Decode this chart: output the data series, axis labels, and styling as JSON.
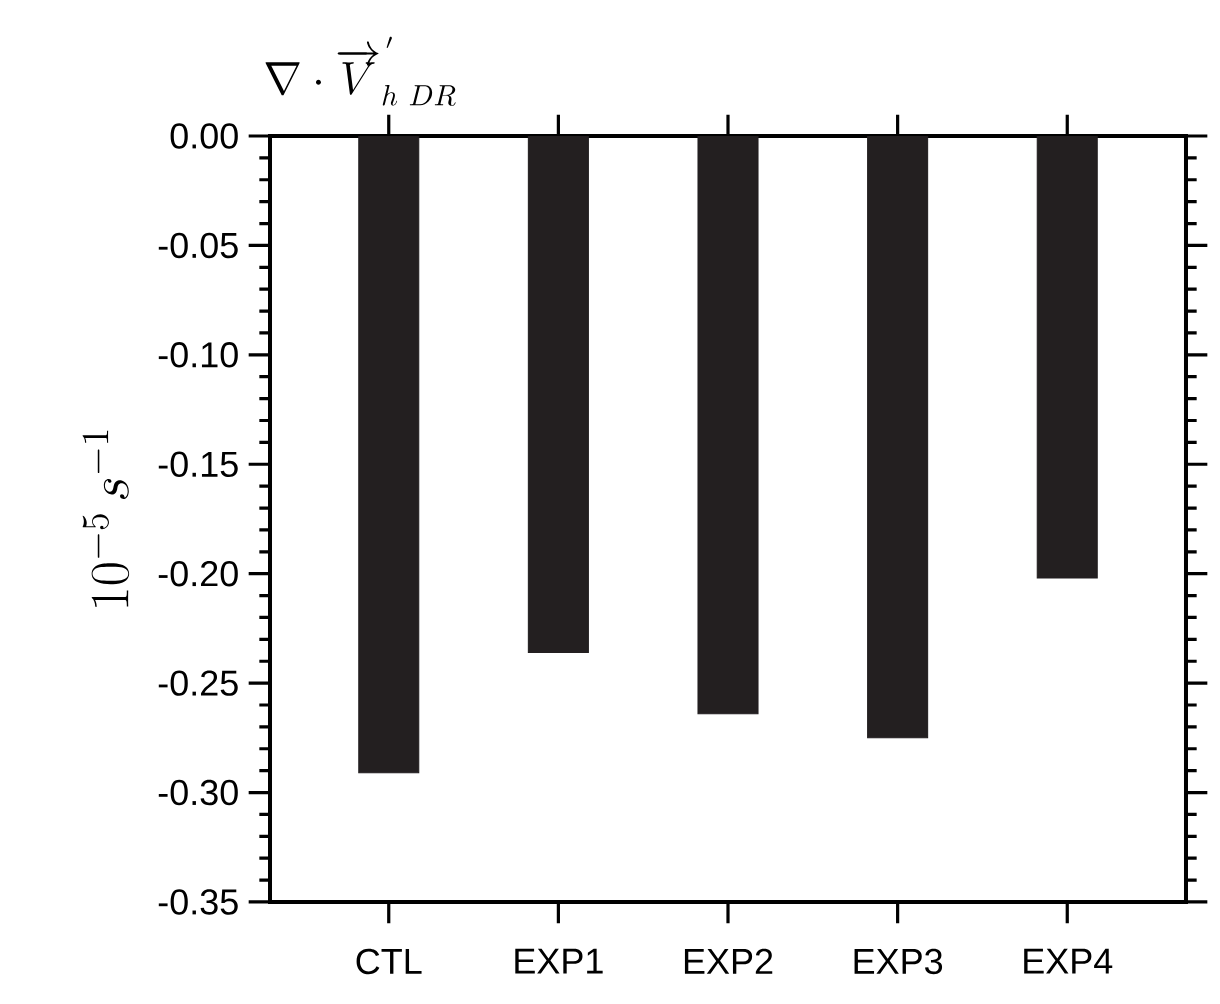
{
  "chart_data": {
    "type": "bar",
    "title": "\\nabla \\cdot \\overrightarrow{V}_{h\\ DR}^{\\,'}",
    "ylabel": "10^{-5}\\, s^{-1}",
    "categories": [
      "CTL",
      "EXP1",
      "EXP2",
      "EXP3",
      "EXP4"
    ],
    "values": [
      -0.291,
      -0.236,
      -0.264,
      -0.275,
      -0.202
    ],
    "color": "#231f20",
    "ylim": [
      -0.35,
      0
    ],
    "yticks": [
      {
        "value": 0,
        "label": "0.00"
      },
      {
        "value": -0.05,
        "label": "-0.05"
      },
      {
        "value": -0.1,
        "label": "-0.10"
      },
      {
        "value": -0.15,
        "label": "-0.15"
      },
      {
        "value": -0.2,
        "label": "-0.20"
      },
      {
        "value": -0.25,
        "label": "-0.25"
      },
      {
        "value": -0.3,
        "label": "-0.30"
      },
      {
        "value": -0.35,
        "label": "-0.35"
      }
    ],
    "grid": false
  }
}
